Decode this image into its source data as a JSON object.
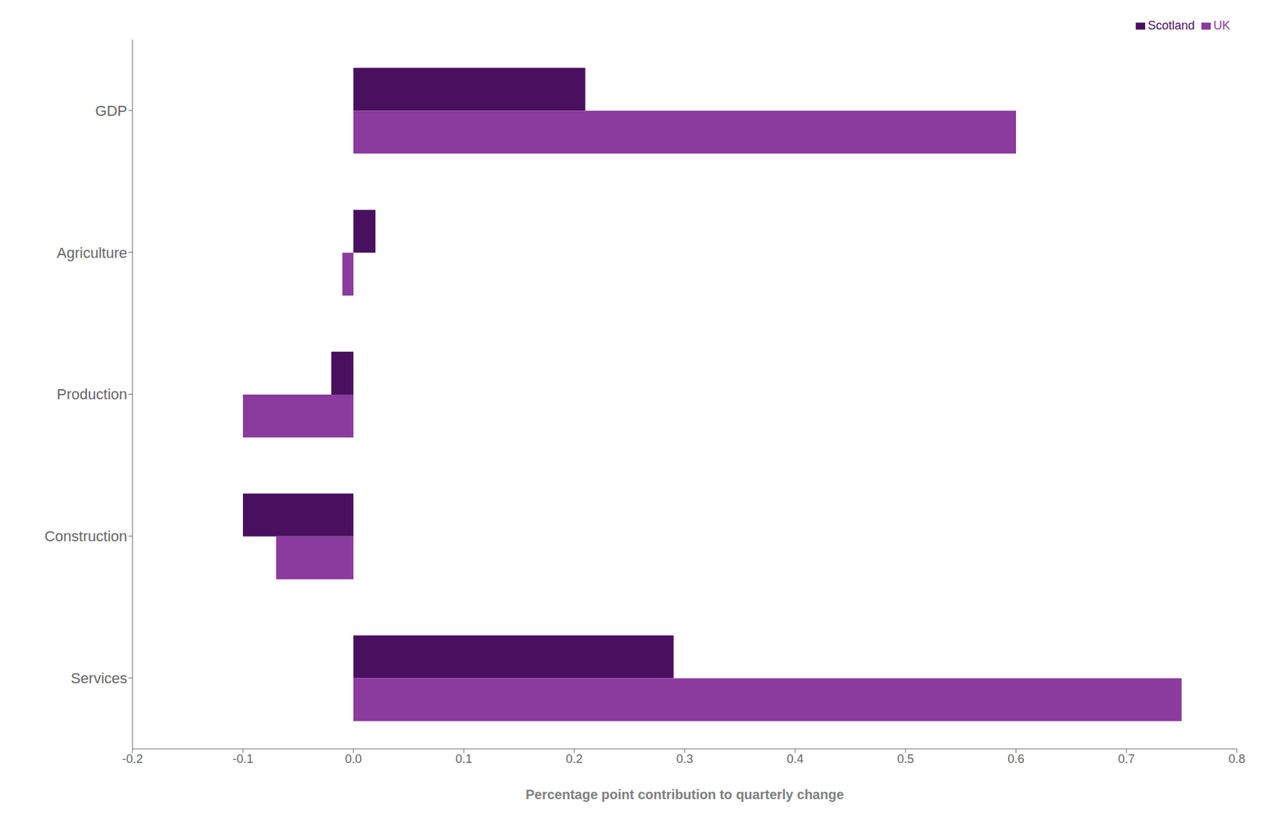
{
  "chart_data": {
    "type": "bar",
    "orientation": "horizontal",
    "categories": [
      "GDP",
      "Agriculture",
      "Production",
      "Construction",
      "Services"
    ],
    "series": [
      {
        "name": "Scotland",
        "color": "#4a1060",
        "values": [
          0.21,
          0.02,
          -0.02,
          -0.1,
          0.29
        ]
      },
      {
        "name": "UK",
        "color": "#8b3a9e",
        "values": [
          0.6,
          -0.01,
          -0.1,
          -0.07,
          0.75
        ]
      }
    ],
    "xlabel": "Percentage point contribution to quarterly change",
    "xlim": [
      -0.2,
      0.8
    ],
    "xticks": [
      -0.2,
      -0.1,
      {
        "value": 0.0,
        "label": "0.0"
      },
      0.1,
      0.2,
      0.3,
      0.4,
      0.5,
      0.6,
      0.7,
      0.8
    ],
    "grid": false,
    "legend": "top-right"
  }
}
